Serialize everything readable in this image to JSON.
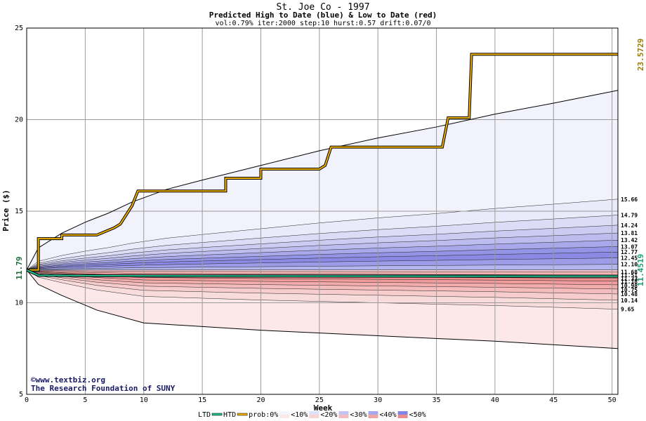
{
  "chart_data": {
    "type": "area",
    "title": "St. Joe Co - 1997",
    "subtitle": "Predicted High to Date (blue) &  Low to Date (red)",
    "params": "vol:0.79% iter:2000 step:10 hurst:0.57 drift:0.07/0",
    "xlabel": "Week",
    "ylabel": "Price ($)",
    "xlim": [
      0,
      50.5
    ],
    "ylim": [
      5,
      25
    ],
    "x_ticks": [
      "0",
      "5",
      "10",
      "15",
      "20",
      "25",
      "30",
      "35",
      "40",
      "45",
      "50"
    ],
    "y_ticks": [
      "5",
      "10",
      "15",
      "20",
      "25"
    ],
    "grid": true,
    "start_price_label": "11.79",
    "start_price": 11.79,
    "high_label": "23.5729",
    "high_value": 23.5729,
    "low_label": "11.4519",
    "low_value": 11.4519,
    "upper_envelope": {
      "x": [
        0,
        1,
        3,
        5,
        7,
        9,
        12,
        15,
        20,
        25,
        30,
        35,
        40,
        45,
        50.5
      ],
      "y": [
        11.79,
        13.0,
        13.8,
        14.4,
        14.9,
        15.5,
        16.2,
        16.7,
        17.5,
        18.3,
        19.0,
        19.6,
        20.3,
        20.9,
        21.6
      ]
    },
    "lower_envelope": {
      "x": [
        0,
        1,
        3,
        6,
        10,
        15,
        20,
        30,
        40,
        50.5
      ],
      "y": [
        11.79,
        11.0,
        10.4,
        9.6,
        8.9,
        8.7,
        8.5,
        8.2,
        7.9,
        7.5
      ]
    },
    "high_bands": [
      {
        "level": "15.66",
        "value": 15.66
      },
      {
        "level": "14.79",
        "value": 14.79
      },
      {
        "level": "14.24",
        "value": 14.24
      },
      {
        "level": "13.81",
        "value": 13.81
      },
      {
        "level": "13.42",
        "value": 13.42
      },
      {
        "level": "13.07",
        "value": 13.07
      },
      {
        "level": "12.77",
        "value": 12.77
      },
      {
        "level": "12.45",
        "value": 12.45
      },
      {
        "level": "12.10",
        "value": 12.1
      }
    ],
    "low_bands": [
      {
        "level": "11.68",
        "value": 11.68
      },
      {
        "level": "11.51",
        "value": 11.51
      },
      {
        "level": "11.33",
        "value": 11.33
      },
      {
        "level": "11.18",
        "value": 11.18
      },
      {
        "level": "10.98",
        "value": 10.98
      },
      {
        "level": "10.75",
        "value": 10.75
      },
      {
        "level": "10.48",
        "value": 10.48
      },
      {
        "level": "10.14",
        "value": 10.14
      },
      {
        "level": "9.65",
        "value": 9.65
      }
    ],
    "htd_series": {
      "x": [
        0,
        1,
        1,
        3,
        3,
        6,
        7.5,
        8,
        9,
        9.5,
        17,
        17,
        20,
        20,
        25,
        25.5,
        26,
        35.5,
        36,
        37.8,
        38,
        50.5
      ],
      "y": [
        11.79,
        11.79,
        13.5,
        13.5,
        13.7,
        13.7,
        14.1,
        14.3,
        15.3,
        16.1,
        16.1,
        16.8,
        16.8,
        17.3,
        17.3,
        17.5,
        18.5,
        18.5,
        20.1,
        20.1,
        23.57,
        23.57
      ]
    },
    "ltd_series": {
      "x": [
        0,
        1,
        5,
        10,
        20,
        30,
        40,
        50.5
      ],
      "y": [
        11.79,
        11.5,
        11.48,
        11.47,
        11.46,
        11.455,
        11.452,
        11.452
      ]
    },
    "legend": {
      "items": [
        "LTD",
        "HTD",
        "prob:0%",
        "<10%",
        "<20%",
        "<30%",
        "<40%",
        "<50%"
      ],
      "blue_swatches": [
        "#f4f4fc",
        "#e0e0f8",
        "#c4c4f2",
        "#a8a8ec",
        "#8484e4"
      ],
      "red_swatches": [
        "#fce8e8",
        "#f8d4d4",
        "#f4bcbc",
        "#f0a4a4",
        "#ec8c8c"
      ],
      "placement": "bottom"
    },
    "colors": {
      "background_top": "#f2f2fc",
      "background_bottom": "#fce8e8",
      "htd_line": "#f0b000",
      "ltd_line": "#20c090",
      "high_label_color": "#9a7a00",
      "low_label_color": "#20a070",
      "start_label_color": "#1f6a3a"
    }
  },
  "credit": {
    "copyright": "©www.textbiz.org",
    "org": "The Research Foundation of SUNY"
  }
}
